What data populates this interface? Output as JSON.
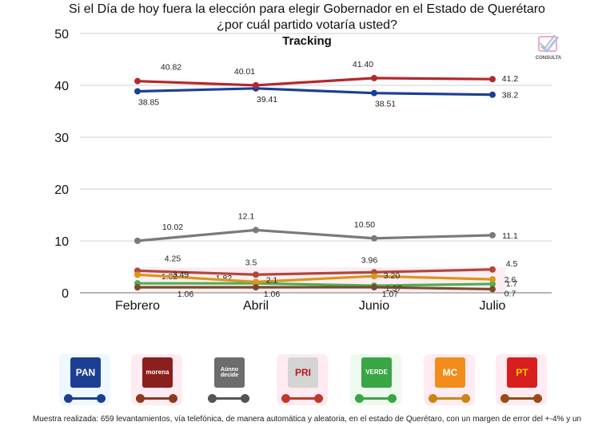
{
  "header": {
    "title_line1": "Si el Día de hoy fuera la elección para elegir Gobernador en el Estado de Querétaro",
    "title_line2": "¿por cuál partido votaría usted?",
    "subtitle": "Tracking"
  },
  "logo": {
    "text": "CONSULTA"
  },
  "chart_data": {
    "type": "line",
    "categories": [
      "Febrero",
      "Abril",
      "Junio",
      "Julio"
    ],
    "ylim": [
      0,
      50
    ],
    "yticks": [
      0,
      10,
      20,
      30,
      40,
      50
    ],
    "grid": true,
    "series": [
      {
        "name": "PAN",
        "color": "#1c3f94",
        "values": [
          38.85,
          39.41,
          38.51,
          38.2
        ],
        "labels": [
          "38.85",
          "39.41",
          "38.51",
          "38.2"
        ]
      },
      {
        "name": "morena",
        "color": "#b5272d",
        "values": [
          40.82,
          40.01,
          41.4,
          41.2
        ],
        "labels": [
          "40.82",
          "40.01",
          "41.40",
          "41.2"
        ]
      },
      {
        "name": "Aúnno decide",
        "color": "#7a7a7a",
        "values": [
          10.02,
          12.1,
          10.5,
          11.1
        ],
        "labels": [
          "10.02",
          "12.1",
          "10.50",
          "11.1"
        ]
      },
      {
        "name": "PRI",
        "color": "#b1473c",
        "values": [
          4.25,
          3.5,
          3.96,
          4.5
        ],
        "labels": [
          "4.25",
          "3.5",
          "3.96",
          "4.5"
        ]
      },
      {
        "name": "VERDE",
        "color": "#4caf50",
        "values": [
          1.82,
          1.82,
          1.37,
          1.7
        ],
        "labels": [
          "1.82",
          "1.82",
          "1.37",
          "1.7"
        ]
      },
      {
        "name": "MC",
        "color": "#d9961a",
        "values": [
          3.49,
          2.1,
          3.2,
          2.6
        ],
        "labels": [
          "3.49",
          "2.1",
          "3.20",
          "2.6"
        ]
      },
      {
        "name": "PT",
        "color": "#7a4a2a",
        "values": [
          1.06,
          1.06,
          1.07,
          0.7
        ],
        "labels": [
          "1.06",
          "1.06",
          "1.07",
          "0.7"
        ]
      }
    ]
  },
  "legend": [
    {
      "key": "pan",
      "text": "PAN",
      "bg": "#1c3f94",
      "fg": "#ffffff",
      "line": "#1c3f94",
      "glow": "#9fd8ff"
    },
    {
      "key": "morena",
      "text": "morena",
      "bg": "#8b1e1e",
      "fg": "#ffffff",
      "line": "#8b3a1e",
      "glow": "#ff8fb0"
    },
    {
      "key": "undecided",
      "text": "Aúnno decide",
      "bg": "#6d6d6d",
      "fg": "#ffffff",
      "line": "#555555",
      "glow": "#ffffff"
    },
    {
      "key": "pri",
      "text": "PRI",
      "bg": "#d4d4d4",
      "fg": "#c0151a",
      "line": "#c0392b",
      "glow": "#ff8fb0"
    },
    {
      "key": "verde",
      "text": "VERDE",
      "bg": "#3aa544",
      "fg": "#ffffff",
      "line": "#3aa544",
      "glow": "#9be8a2"
    },
    {
      "key": "mc",
      "text": "MC",
      "bg": "#f28c1b",
      "fg": "#ffffff",
      "line": "#c98612",
      "glow": "#ff8fb0"
    },
    {
      "key": "pt",
      "text": "PT",
      "bg": "#d81e1e",
      "fg": "#ffd400",
      "line": "#9a4a14",
      "glow": "#ff8fb0"
    }
  ],
  "footer": {
    "text": "Muestra realizada: 659 levantamientos, vía telefónica, de manera automática y aleatoria, en el estado de Querétaro, con un margen de error del +-4% y un"
  }
}
